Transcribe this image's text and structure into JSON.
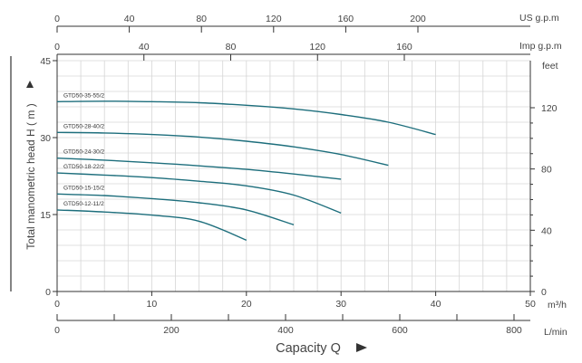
{
  "chart_data": {
    "type": "line",
    "title": "",
    "xlabel": "Capacity  Q",
    "ylabel": "Total  manometric head  H   ( m )",
    "x_unit": "m³/h",
    "y_unit": "",
    "xlim": [
      0,
      50
    ],
    "ylim": [
      0,
      45
    ],
    "x_ticks": [
      "0",
      "10",
      "20",
      "30",
      "40",
      "50"
    ],
    "y_ticks": [
      "0",
      "15",
      "30",
      "45"
    ],
    "grid": true,
    "series": [
      {
        "name": "GTD50-35-55/2",
        "x": [
          0,
          5,
          10,
          15,
          20,
          25,
          30,
          35,
          40
        ],
        "y": [
          37.0,
          37.1,
          37.0,
          36.8,
          36.3,
          35.6,
          34.5,
          33.0,
          30.6
        ]
      },
      {
        "name": "GTD50-28-40/2",
        "x": [
          0,
          5,
          10,
          15,
          20,
          25,
          30,
          35
        ],
        "y": [
          31.0,
          30.9,
          30.6,
          30.1,
          29.3,
          28.2,
          26.7,
          24.6
        ]
      },
      {
        "name": "GTD50-24-30/2",
        "x": [
          0,
          5,
          10,
          15,
          20,
          25,
          30
        ],
        "y": [
          26.0,
          25.6,
          25.1,
          24.5,
          23.8,
          22.9,
          21.9
        ]
      },
      {
        "name": "GTD50-18-22/2",
        "x": [
          0,
          5,
          10,
          15,
          20,
          25,
          30
        ],
        "y": [
          23.1,
          22.7,
          22.2,
          21.5,
          20.6,
          18.8,
          15.3
        ]
      },
      {
        "name": "GTD50-15-15/2",
        "x": [
          0,
          5,
          10,
          15,
          20,
          25
        ],
        "y": [
          19.0,
          18.7,
          18.1,
          17.3,
          15.9,
          13.0
        ]
      },
      {
        "name": "GTD50-12-11/2",
        "x": [
          0,
          5,
          10,
          15,
          20
        ],
        "y": [
          15.9,
          15.5,
          14.9,
          13.7,
          10.0
        ]
      }
    ],
    "secondary_axes": {
      "right": {
        "unit": "feet",
        "ticks": [
          "0",
          "40",
          "80",
          "120"
        ]
      },
      "top_us": {
        "unit": "US g.p.m",
        "ticks": [
          "0",
          "40",
          "80",
          "120",
          "160",
          "200"
        ]
      },
      "top_imp": {
        "unit": "Imp g.p.m",
        "ticks": [
          "0",
          "40",
          "80",
          "120",
          "160"
        ]
      },
      "bottom_lmin": {
        "unit": "L/min",
        "ticks": [
          "0",
          "200",
          "400",
          "600",
          "800"
        ]
      }
    }
  },
  "colors": {
    "curve": "#1d6e7c",
    "grid": "#d6d6d6",
    "axis": "#333333",
    "text": "#444444"
  }
}
